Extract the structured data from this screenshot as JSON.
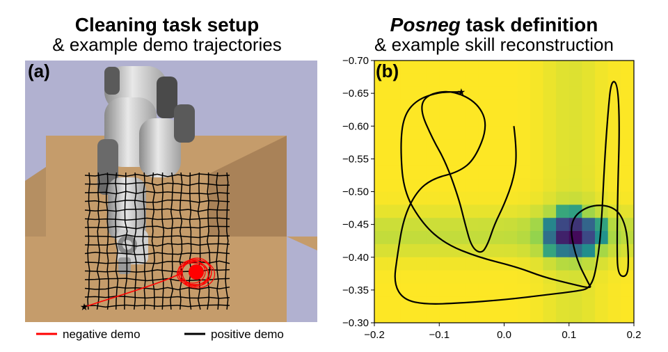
{
  "left_panel": {
    "title": "Cleaning task setup",
    "subtitle": "& example demo trajectories",
    "label": "(a)",
    "legend": [
      {
        "label": "negative demo",
        "color": "#ff0000"
      },
      {
        "label": "positive demo",
        "color": "#000000"
      }
    ]
  },
  "right_panel": {
    "title_italic": "Posneg",
    "title_rest": " task definition",
    "subtitle": "& example skill reconstruction",
    "label": "(b)"
  },
  "chart_data": {
    "type": "heatmap",
    "xlim": [
      -0.2,
      0.2
    ],
    "ylim": [
      -0.7,
      -0.3
    ],
    "y_inverted_ticks": true,
    "xticks": [
      "−0.2",
      "−0.1",
      "0.0",
      "0.1",
      "0.2"
    ],
    "yticks": [
      "−0.70",
      "−0.65",
      "−0.60",
      "−0.55",
      "−0.50",
      "−0.45",
      "−0.40",
      "−0.35",
      "−0.30"
    ],
    "heatmap_minimum_at": {
      "x": 0.105,
      "y": -0.435
    },
    "trajectory": [
      [
        0.015,
        -0.6
      ],
      [
        0.02,
        -0.56
      ],
      [
        0.015,
        -0.52
      ],
      [
        0.0,
        -0.48
      ],
      [
        -0.015,
        -0.45
      ],
      [
        -0.025,
        -0.42
      ],
      [
        -0.035,
        -0.405
      ],
      [
        -0.05,
        -0.415
      ],
      [
        -0.06,
        -0.45
      ],
      [
        -0.07,
        -0.49
      ],
      [
        -0.09,
        -0.545
      ],
      [
        -0.11,
        -0.58
      ],
      [
        -0.13,
        -0.625
      ],
      [
        -0.12,
        -0.648
      ],
      [
        -0.08,
        -0.655
      ],
      [
        -0.04,
        -0.635
      ],
      [
        -0.025,
        -0.6
      ],
      [
        -0.045,
        -0.55
      ],
      [
        -0.07,
        -0.53
      ],
      [
        -0.11,
        -0.52
      ],
      [
        -0.135,
        -0.5
      ],
      [
        -0.155,
        -0.46
      ],
      [
        -0.165,
        -0.4
      ],
      [
        -0.17,
        -0.36
      ],
      [
        -0.155,
        -0.335
      ],
      [
        -0.12,
        -0.328
      ],
      [
        -0.07,
        -0.33
      ],
      [
        0.0,
        -0.335
      ],
      [
        0.06,
        -0.342
      ],
      [
        0.11,
        -0.348
      ],
      [
        0.135,
        -0.353
      ],
      [
        0.145,
        -0.4
      ],
      [
        0.15,
        -0.45
      ],
      [
        0.155,
        -0.55
      ],
      [
        0.16,
        -0.62
      ],
      [
        0.165,
        -0.67
      ],
      [
        0.175,
        -0.665
      ],
      [
        0.178,
        -0.6
      ],
      [
        0.175,
        -0.5
      ],
      [
        0.174,
        -0.42
      ],
      [
        0.175,
        -0.372
      ],
      [
        0.19,
        -0.37
      ],
      [
        0.192,
        -0.4
      ],
      [
        0.188,
        -0.45
      ],
      [
        0.17,
        -0.478
      ],
      [
        0.13,
        -0.48
      ],
      [
        0.1,
        -0.455
      ],
      [
        0.11,
        -0.4
      ],
      [
        0.13,
        -0.36
      ],
      [
        0.135,
        -0.352
      ],
      [
        0.1,
        -0.36
      ],
      [
        0.06,
        -0.37
      ],
      [
        0.02,
        -0.385
      ],
      [
        -0.04,
        -0.4
      ],
      [
        -0.09,
        -0.42
      ],
      [
        -0.125,
        -0.45
      ],
      [
        -0.155,
        -0.5
      ],
      [
        -0.16,
        -0.57
      ],
      [
        -0.155,
        -0.615
      ],
      [
        -0.135,
        -0.64
      ],
      [
        -0.1,
        -0.652
      ],
      [
        -0.066,
        -0.652
      ]
    ],
    "trajectory_end": {
      "x": -0.066,
      "y": -0.652
    }
  }
}
